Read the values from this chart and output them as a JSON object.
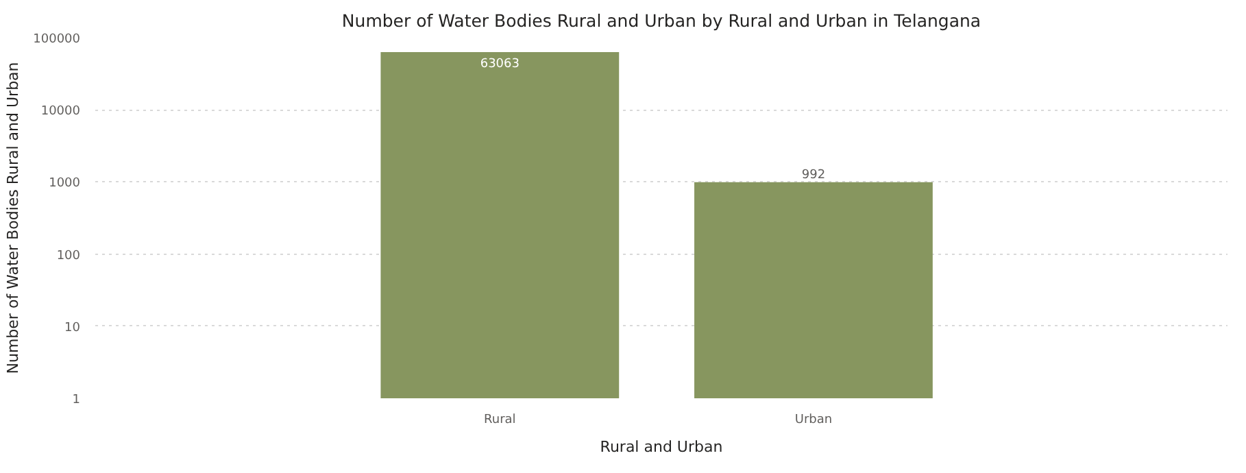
{
  "chart_data": {
    "type": "bar",
    "title": "Number of Water Bodies Rural and Urban by Rural and Urban in Telangana",
    "xlabel": "Rural and Urban",
    "ylabel": "Number of Water Bodies Rural and Urban",
    "categories": [
      "Rural",
      "Urban"
    ],
    "values": [
      63063,
      992
    ],
    "color": "#87965f",
    "log": true,
    "ylim": [
      1,
      100000
    ],
    "yticks": [
      1,
      10,
      100,
      1000,
      10000,
      100000
    ],
    "grid": "y",
    "data_labels": true
  }
}
